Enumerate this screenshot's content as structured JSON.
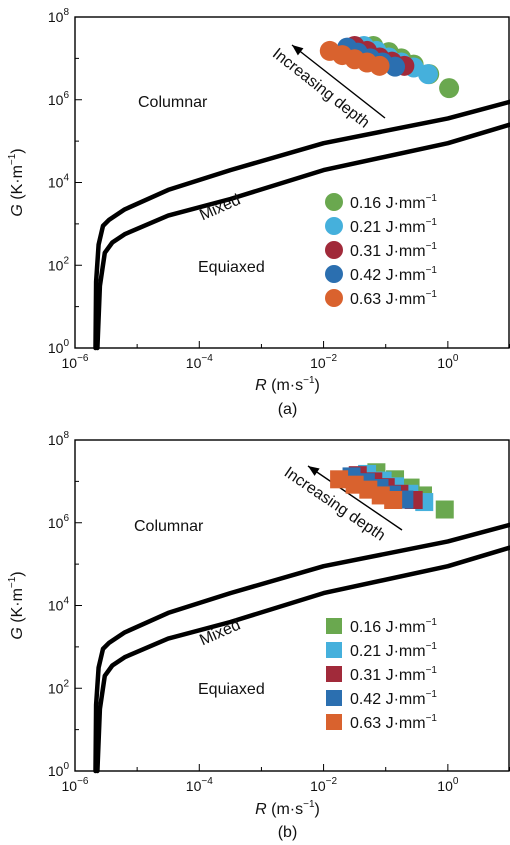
{
  "chart_data": [
    {
      "type": "scatter",
      "panel_label": "(a)",
      "marker": "circle",
      "xscale": "log",
      "yscale": "log",
      "xlim_exp": [
        -6,
        1
      ],
      "ylim_exp": [
        0,
        8
      ],
      "x_tick_labels": [
        {
          "base": "10",
          "exp": "−6",
          "val": -6
        },
        {
          "base": "10",
          "exp": "−4",
          "val": -4
        },
        {
          "base": "10",
          "exp": "−2",
          "val": -2
        },
        {
          "base": "10",
          "exp": "0",
          "val": 0
        }
      ],
      "y_tick_labels": [
        {
          "base": "10",
          "exp": "0",
          "val": 0
        },
        {
          "base": "10",
          "exp": "2",
          "val": 2
        },
        {
          "base": "10",
          "exp": "4",
          "val": 4
        },
        {
          "base": "10",
          "exp": "6",
          "val": 6
        },
        {
          "base": "10",
          "exp": "8",
          "val": 8
        }
      ],
      "xlabel": {
        "var": "R",
        "unit_pre": " (m·s",
        "unit_exp": "−1",
        "unit_post": ")"
      },
      "ylabel": {
        "var": "G",
        "unit_pre": " (K·m",
        "unit_exp": "−1",
        "unit_post": ")"
      },
      "region_labels": {
        "columnar": "Columnar",
        "mixed": "Mixed",
        "equiaxed": "Equiaxed"
      },
      "arrow_label": "Increasing depth",
      "boundaries": [
        {
          "name": "upper",
          "points": [
            [
              -5.67,
              0
            ],
            [
              -5.66,
              1.6
            ],
            [
              -5.62,
              2.5
            ],
            [
              -5.55,
              2.95
            ],
            [
              -5.45,
              3.1
            ],
            [
              -5.2,
              3.35
            ],
            [
              -4.5,
              3.82
            ],
            [
              -3.5,
              4.3
            ],
            [
              -2,
              4.95
            ],
            [
              0,
              5.55
            ],
            [
              1,
              5.95
            ]
          ]
        },
        {
          "name": "lower",
          "points": [
            [
              -5.64,
              0
            ],
            [
              -5.6,
              1.5
            ],
            [
              -5.52,
              2.3
            ],
            [
              -5.4,
              2.55
            ],
            [
              -5.2,
              2.75
            ],
            [
              -4.5,
              3.2
            ],
            [
              -3.5,
              3.6
            ],
            [
              -2,
              4.3
            ],
            [
              0,
              4.95
            ],
            [
              1,
              5.4
            ]
          ]
        }
      ],
      "series": [
        {
          "name_pre": "0.16 J·mm",
          "name_exp": "−1",
          "color": "#6aa84f",
          "points": [
            [
              -1.2,
              7.3
            ],
            [
              -0.95,
              7.15
            ],
            [
              -0.75,
              7.0
            ],
            [
              -0.55,
              6.85
            ],
            [
              -0.3,
              6.62
            ],
            [
              0.02,
              6.28
            ]
          ]
        },
        {
          "name_pre": "0.21 J·mm",
          "name_exp": "−1",
          "color": "#45b0dc",
          "points": [
            [
              -1.35,
              7.3
            ],
            [
              -1.15,
              7.18
            ],
            [
              -0.95,
              7.02
            ],
            [
              -0.75,
              6.9
            ],
            [
              -0.55,
              6.78
            ],
            [
              -0.32,
              6.62
            ]
          ]
        },
        {
          "name_pre": "0.31 J·mm",
          "name_exp": "−1",
          "color": "#a12a3a",
          "points": [
            [
              -1.5,
              7.3
            ],
            [
              -1.3,
              7.18
            ],
            [
              -1.1,
              7.02
            ],
            [
              -0.9,
              6.92
            ],
            [
              -0.7,
              6.82
            ]
          ]
        },
        {
          "name_pre": "0.42 J·mm",
          "name_exp": "−1",
          "color": "#2b6fb0",
          "points": [
            [
              -1.62,
              7.26
            ],
            [
              -1.45,
              7.14
            ],
            [
              -1.25,
              7.0
            ],
            [
              -1.05,
              6.9
            ],
            [
              -0.85,
              6.8
            ]
          ]
        },
        {
          "name_pre": "0.63 J·mm",
          "name_exp": "−1",
          "color": "#d9622e",
          "points": [
            [
              -1.9,
              7.18
            ],
            [
              -1.7,
              7.08
            ],
            [
              -1.5,
              6.98
            ],
            [
              -1.3,
              6.9
            ],
            [
              -1.1,
              6.82
            ]
          ]
        }
      ]
    },
    {
      "type": "scatter",
      "panel_label": "(b)",
      "marker": "square",
      "xscale": "log",
      "yscale": "log",
      "xlim_exp": [
        -6,
        1
      ],
      "ylim_exp": [
        0,
        8
      ],
      "x_tick_labels": [
        {
          "base": "10",
          "exp": "−6",
          "val": -6
        },
        {
          "base": "10",
          "exp": "−4",
          "val": -4
        },
        {
          "base": "10",
          "exp": "−2",
          "val": -2
        },
        {
          "base": "10",
          "exp": "0",
          "val": 0
        }
      ],
      "y_tick_labels": [
        {
          "base": "10",
          "exp": "0",
          "val": 0
        },
        {
          "base": "10",
          "exp": "2",
          "val": 2
        },
        {
          "base": "10",
          "exp": "4",
          "val": 4
        },
        {
          "base": "10",
          "exp": "6",
          "val": 6
        },
        {
          "base": "10",
          "exp": "8",
          "val": 8
        }
      ],
      "xlabel": {
        "var": "R",
        "unit_pre": " (m·s",
        "unit_exp": "−1",
        "unit_post": ")"
      },
      "ylabel": {
        "var": "G",
        "unit_pre": " (K·m",
        "unit_exp": "−1",
        "unit_post": ")"
      },
      "region_labels": {
        "columnar": "Columnar",
        "mixed": "Mixed",
        "equiaxed": "Equiaxed"
      },
      "arrow_label": "Increasing depth",
      "boundaries": [
        {
          "name": "upper",
          "points": [
            [
              -5.67,
              0
            ],
            [
              -5.66,
              1.6
            ],
            [
              -5.62,
              2.5
            ],
            [
              -5.55,
              2.95
            ],
            [
              -5.45,
              3.1
            ],
            [
              -5.2,
              3.35
            ],
            [
              -4.5,
              3.82
            ],
            [
              -3.5,
              4.3
            ],
            [
              -2,
              4.95
            ],
            [
              0,
              5.55
            ],
            [
              1,
              5.95
            ]
          ]
        },
        {
          "name": "lower",
          "points": [
            [
              -5.64,
              0
            ],
            [
              -5.6,
              1.5
            ],
            [
              -5.52,
              2.3
            ],
            [
              -5.4,
              2.55
            ],
            [
              -5.2,
              2.75
            ],
            [
              -4.5,
              3.2
            ],
            [
              -3.5,
              3.6
            ],
            [
              -2,
              4.3
            ],
            [
              0,
              4.95
            ],
            [
              1,
              5.4
            ]
          ]
        }
      ],
      "series": [
        {
          "name_pre": "0.16 J·mm",
          "name_exp": "−1",
          "color": "#6aa84f",
          "points": [
            [
              -1.15,
              7.22
            ],
            [
              -0.85,
              7.05
            ],
            [
              -0.6,
              6.85
            ],
            [
              -0.4,
              6.66
            ],
            [
              -0.05,
              6.32
            ]
          ]
        },
        {
          "name_pre": "0.21 J·mm",
          "name_exp": "−1",
          "color": "#45b0dc",
          "points": [
            [
              -1.3,
              7.18
            ],
            [
              -1.05,
              7.02
            ],
            [
              -0.85,
              6.88
            ],
            [
              -0.62,
              6.7
            ],
            [
              -0.38,
              6.5
            ]
          ]
        },
        {
          "name_pre": "0.31 J·mm",
          "name_exp": "−1",
          "color": "#a12a3a",
          "points": [
            [
              -1.45,
              7.15
            ],
            [
              -1.2,
              7.0
            ],
            [
              -1.0,
              6.86
            ],
            [
              -0.78,
              6.7
            ],
            [
              -0.55,
              6.55
            ]
          ]
        },
        {
          "name_pre": "0.42 J·mm",
          "name_exp": "−1",
          "color": "#2b6fb0",
          "points": [
            [
              -1.55,
              7.12
            ],
            [
              -1.32,
              6.98
            ],
            [
              -1.1,
              6.84
            ],
            [
              -0.9,
              6.68
            ],
            [
              -0.7,
              6.56
            ]
          ]
        },
        {
          "name_pre": "0.63 J·mm",
          "name_exp": "−1",
          "color": "#d9622e",
          "points": [
            [
              -1.75,
              7.05
            ],
            [
              -1.5,
              6.92
            ],
            [
              -1.28,
              6.8
            ],
            [
              -1.08,
              6.66
            ],
            [
              -0.88,
              6.55
            ]
          ]
        }
      ]
    }
  ]
}
